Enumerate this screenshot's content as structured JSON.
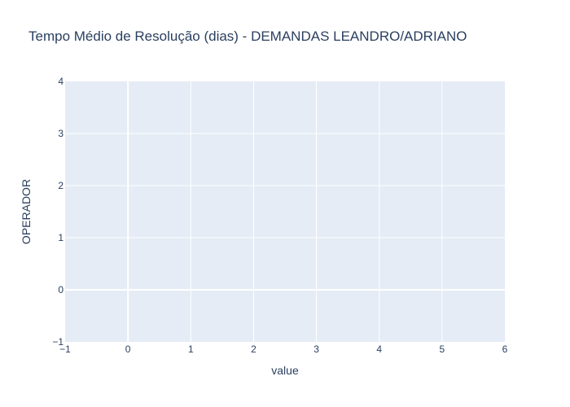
{
  "chart_data": {
    "type": "bar",
    "title": "Tempo Médio de Resolução (dias) - DEMANDAS LEANDRO/ADRIANO",
    "xlabel": "value",
    "ylabel": "OPERADOR",
    "xlim": [
      -1,
      6
    ],
    "ylim": [
      -1,
      4
    ],
    "x_ticks": [
      -1,
      0,
      1,
      2,
      3,
      4,
      5,
      6
    ],
    "y_ticks": [
      -1,
      0,
      1,
      2,
      3,
      4
    ],
    "x_tick_labels": [
      "−1",
      "0",
      "1",
      "2",
      "3",
      "4",
      "5",
      "6"
    ],
    "y_tick_labels": [
      "−1",
      "0",
      "1",
      "2",
      "3",
      "4"
    ],
    "series": [],
    "grid": true,
    "colors": {
      "plot_background": "#e5ecf6",
      "grid": "#ffffff",
      "text": "#2a3f5f"
    }
  }
}
